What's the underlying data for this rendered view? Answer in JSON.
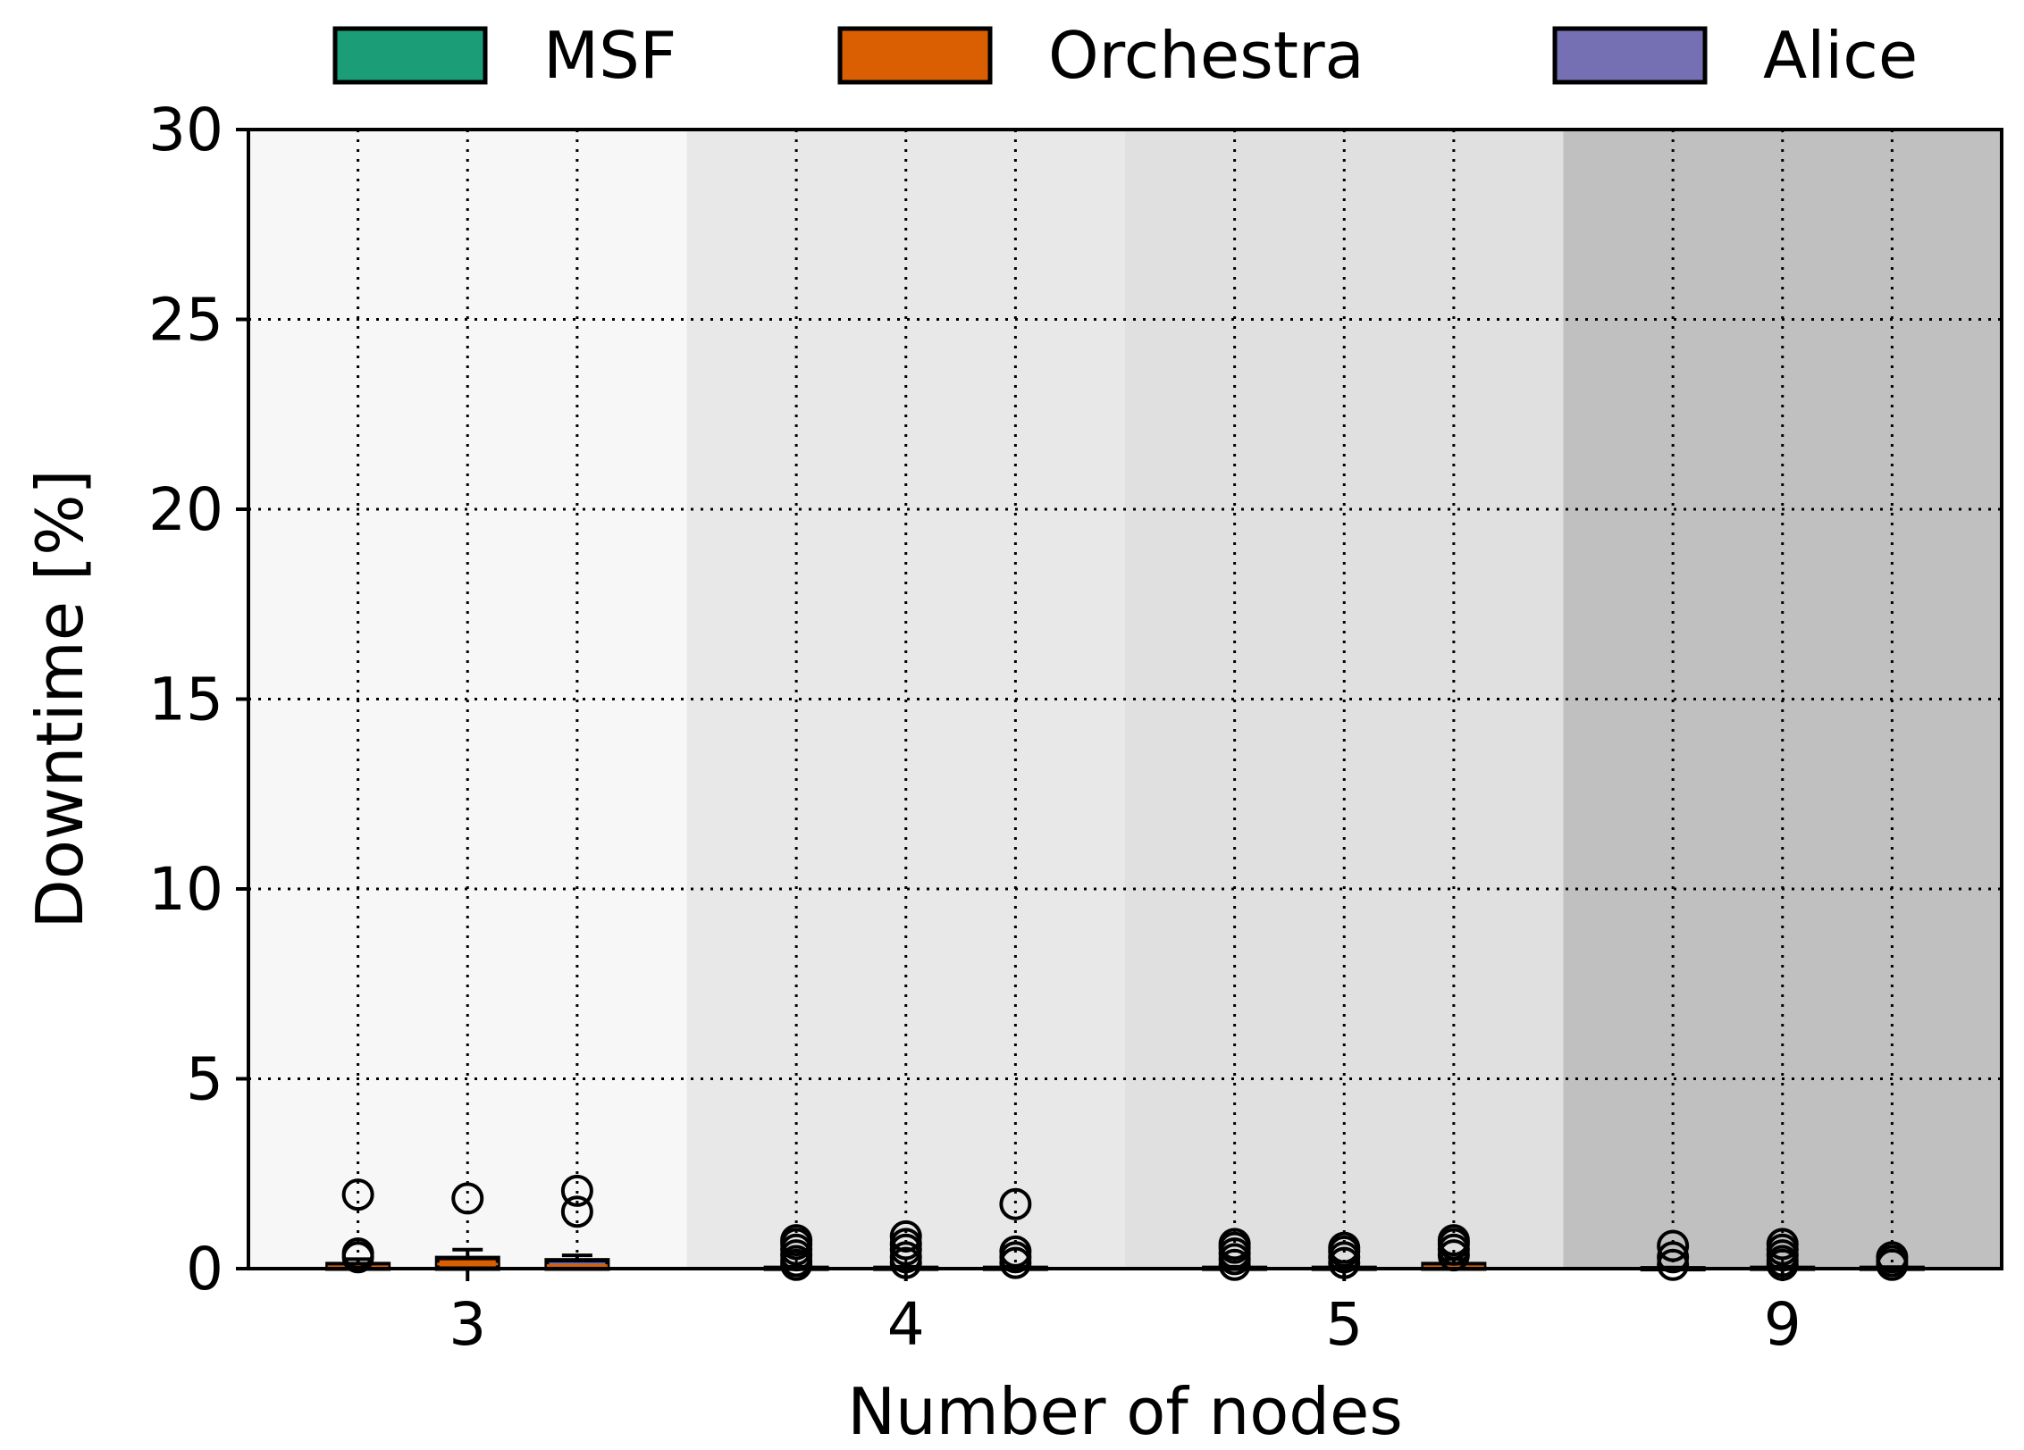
{
  "chart_data": {
    "type": "box",
    "title": "",
    "xlabel": "Number of nodes",
    "ylabel": "Downtime [%]",
    "ylim": [
      0,
      30
    ],
    "yticks": [
      0,
      5,
      10,
      15,
      20,
      25,
      30
    ],
    "categories": [
      "3",
      "4",
      "5",
      "9"
    ],
    "grid": true,
    "legend_position": "top",
    "background_bands": [
      "#f7f7f7",
      "#e8e8e8",
      "#e0e0e0",
      "#c0c0c0"
    ],
    "series": [
      {
        "name": "MSF",
        "color": "#1b9e77",
        "boxes": [
          {
            "q1": 0.0,
            "median": 0.05,
            "q3": 0.12,
            "whisker_low": 0.0,
            "whisker_high": 0.25,
            "outliers": [
              0.3,
              0.4,
              1.95
            ]
          },
          {
            "q1": 0.0,
            "median": 0.0,
            "q3": 0.02,
            "whisker_low": 0.0,
            "whisker_high": 0.05,
            "outliers": [
              0.1,
              0.2,
              0.35,
              0.5,
              0.65,
              0.75
            ]
          },
          {
            "q1": 0.0,
            "median": 0.0,
            "q3": 0.02,
            "whisker_low": 0.0,
            "whisker_high": 0.05,
            "outliers": [
              0.1,
              0.25,
              0.4,
              0.55,
              0.65
            ]
          },
          {
            "q1": 0.0,
            "median": 0.0,
            "q3": 0.01,
            "whisker_low": 0.0,
            "whisker_high": 0.03,
            "outliers": [
              0.1,
              0.3,
              0.6
            ]
          }
        ]
      },
      {
        "name": "Orchestra",
        "color": "#d95f02",
        "boxes": [
          {
            "q1": 0.0,
            "median": 0.12,
            "q3": 0.28,
            "whisker_low": 0.0,
            "whisker_high": 0.5,
            "outliers": [
              1.85
            ]
          },
          {
            "q1": 0.0,
            "median": 0.0,
            "q3": 0.02,
            "whisker_low": 0.0,
            "whisker_high": 0.05,
            "outliers": [
              0.15,
              0.3,
              0.5,
              0.65,
              0.85
            ]
          },
          {
            "q1": 0.0,
            "median": 0.0,
            "q3": 0.02,
            "whisker_low": 0.0,
            "whisker_high": 0.05,
            "outliers": [
              0.15,
              0.3,
              0.45,
              0.55
            ]
          },
          {
            "q1": 0.0,
            "median": 0.0,
            "q3": 0.02,
            "whisker_low": 0.0,
            "whisker_high": 0.05,
            "outliers": [
              0.1,
              0.2,
              0.35,
              0.5,
              0.65
            ]
          }
        ]
      },
      {
        "name": "Alice",
        "color": "#7570b3",
        "boxes": [
          {
            "q1": 0.0,
            "median": 0.08,
            "q3": 0.22,
            "whisker_low": 0.0,
            "whisker_high": 0.35,
            "outliers": [
              1.5,
              2.05
            ]
          },
          {
            "q1": 0.0,
            "median": 0.0,
            "q3": 0.02,
            "whisker_low": 0.0,
            "whisker_high": 0.05,
            "outliers": [
              0.15,
              0.3,
              0.45,
              1.7
            ]
          },
          {
            "q1": 0.0,
            "median": 0.05,
            "q3": 0.12,
            "whisker_low": 0.0,
            "whisker_high": 0.25,
            "outliers": [
              0.35,
              0.5,
              0.65,
              0.75
            ]
          },
          {
            "q1": 0.0,
            "median": 0.0,
            "q3": 0.02,
            "whisker_low": 0.0,
            "whisker_high": 0.04,
            "outliers": [
              0.1,
              0.2,
              0.3
            ]
          }
        ]
      }
    ]
  }
}
